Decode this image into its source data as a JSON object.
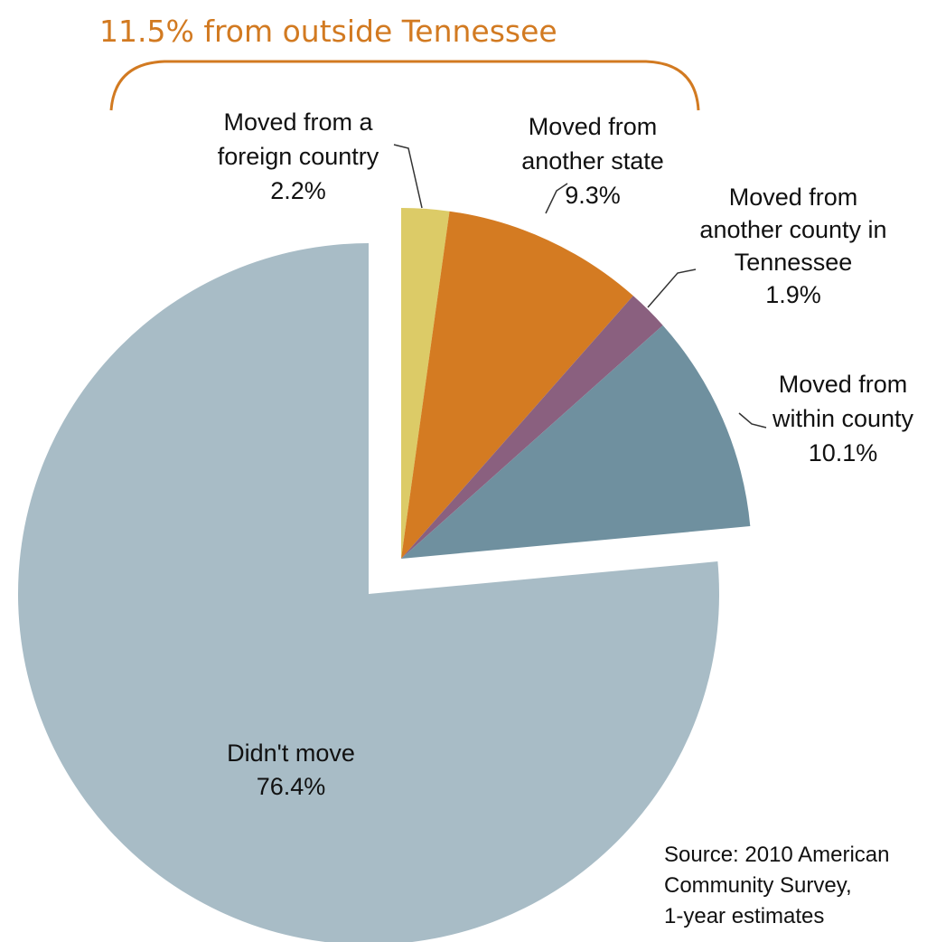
{
  "headline": {
    "text": "11.5% from outside Tennessee",
    "color": "#d27a21"
  },
  "source": {
    "lines": [
      "Source: 2010 American",
      "Community Survey,",
      "1-year estimates"
    ]
  },
  "chart_data": {
    "type": "pie",
    "unit": "%",
    "slices": [
      {
        "label": "Moved from a foreign country",
        "label_lines": [
          "Moved from a",
          "foreign country",
          "2.2%"
        ],
        "value": 2.2,
        "color": "#dccb67",
        "group": "outside"
      },
      {
        "label": "Moved from another state",
        "label_lines": [
          "Moved from",
          "another state",
          "9.3%"
        ],
        "value": 9.3,
        "color": "#d47b22",
        "group": "outside"
      },
      {
        "label": "Moved from another county in Tennessee",
        "label_lines": [
          "Moved from",
          "another county in",
          "Tennessee",
          "1.9%"
        ],
        "value": 1.9,
        "color": "#8a607f",
        "group": "outside"
      },
      {
        "label": "Moved from within county",
        "label_lines": [
          "Moved from",
          "within county",
          "10.1%"
        ],
        "value": 10.1,
        "color": "#6f909f",
        "group": "outside"
      },
      {
        "label": "Didn't move",
        "label_lines": [
          "Didn't move",
          "76.4%"
        ],
        "value": 76.4,
        "color": "#a8bcc6",
        "group": "stayed"
      }
    ]
  }
}
